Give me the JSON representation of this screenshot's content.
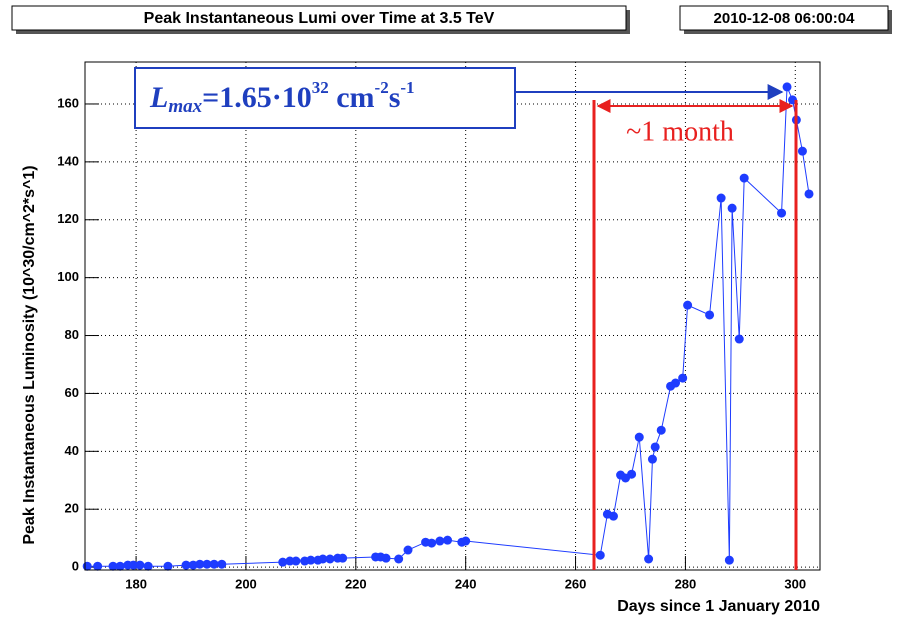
{
  "chart_data": {
    "type": "line",
    "title": "Peak Instantaneous Lumi over Time at 3.5 TeV",
    "timestamp": "2010-12-08 06:00:04",
    "x_label": "Days since 1 January 2010",
    "y_label": "Peak Instantaneous Luminosity (10^30/cm^2*s^1)",
    "annotation_lmax": [
      "L",
      "max",
      "=1.65·10",
      "32",
      " cm",
      "-2",
      "s",
      "-1"
    ],
    "annotation_month": "~1 month",
    "xlim": [
      170.7,
      304.5
    ],
    "ylim": [
      -1,
      174.5
    ],
    "xticks": [
      180,
      200,
      220,
      240,
      260,
      280,
      300
    ],
    "yticks": [
      0,
      20,
      40,
      60,
      80,
      100,
      120,
      140,
      160
    ],
    "grid": true,
    "series": [
      {
        "color": "#1e3cff",
        "x": [
          171.1,
          173.0,
          175.8,
          177.1,
          178.5,
          179.5,
          180.7,
          182.2,
          185.8,
          189.1,
          190.4,
          191.6,
          192.9,
          194.2,
          195.6,
          206.7,
          208.0,
          209.1,
          210.7,
          211.8,
          213.1,
          214.0,
          215.3,
          216.7,
          217.6,
          223.6,
          224.5,
          225.5,
          227.8,
          229.5,
          232.7,
          233.8,
          235.3,
          236.7,
          239.3,
          240.0,
          264.5,
          265.8,
          266.9,
          268.2,
          269.1,
          270.2,
          271.6,
          273.3,
          274.0,
          274.5,
          275.6,
          277.3,
          278.2,
          279.5,
          280.4,
          284.4,
          286.5,
          288.0,
          288.5,
          289.8,
          290.7,
          297.5,
          298.5,
          299.5,
          300.2,
          301.3,
          302.5
        ],
        "values": [
          0.3,
          0.3,
          0.3,
          0.3,
          0.7,
          0.7,
          0.7,
          0.3,
          0.3,
          0.7,
          0.7,
          1.0,
          1.0,
          1.0,
          1.0,
          1.7,
          2.1,
          2.1,
          2.1,
          2.4,
          2.4,
          2.8,
          2.8,
          3.1,
          3.1,
          3.5,
          3.5,
          3.1,
          2.8,
          5.9,
          8.6,
          8.3,
          9.0,
          9.3,
          8.6,
          9.0,
          4.1,
          18.3,
          17.6,
          31.8,
          30.8,
          32.1,
          44.9,
          2.8,
          37.3,
          41.5,
          47.3,
          62.5,
          63.6,
          65.3,
          90.5,
          87.1,
          127.5,
          2.4,
          124.0,
          78.8,
          134.4,
          122.3,
          165.9,
          161.4,
          154.5,
          143.7,
          128.9
        ]
      }
    ]
  }
}
